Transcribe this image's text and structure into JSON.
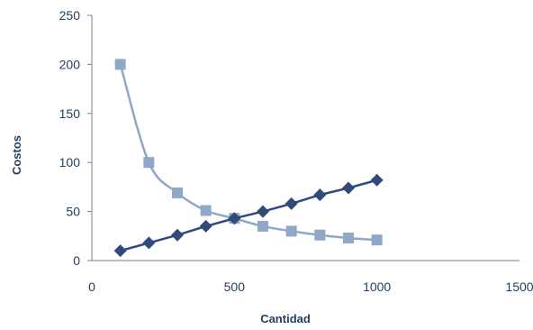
{
  "chart_data": {
    "type": "scatter",
    "title": "",
    "xlabel": "Cantidad",
    "ylabel": "Costos",
    "xlim": [
      0,
      1500
    ],
    "ylim": [
      0,
      250
    ],
    "xticks": [
      0,
      500,
      1000,
      1500
    ],
    "yticks": [
      0,
      50,
      100,
      150,
      200,
      250
    ],
    "grid": false,
    "legend": "none",
    "series": [
      {
        "marker": "diamond",
        "color": "#2f4b7c",
        "smooth": false,
        "points": [
          [
            100,
            10
          ],
          [
            200,
            18
          ],
          [
            300,
            26
          ],
          [
            400,
            35
          ],
          [
            500,
            43
          ],
          [
            600,
            50
          ],
          [
            700,
            58
          ],
          [
            800,
            67
          ],
          [
            900,
            74
          ],
          [
            1000,
            82
          ]
        ]
      },
      {
        "marker": "square",
        "color": "#8fa8c8",
        "smooth": true,
        "points": [
          [
            100,
            200
          ],
          [
            200,
            100
          ],
          [
            300,
            69
          ],
          [
            400,
            51
          ],
          [
            500,
            43
          ],
          [
            600,
            35
          ],
          [
            700,
            30
          ],
          [
            800,
            26
          ],
          [
            900,
            23
          ],
          [
            1000,
            21
          ]
        ]
      }
    ]
  }
}
